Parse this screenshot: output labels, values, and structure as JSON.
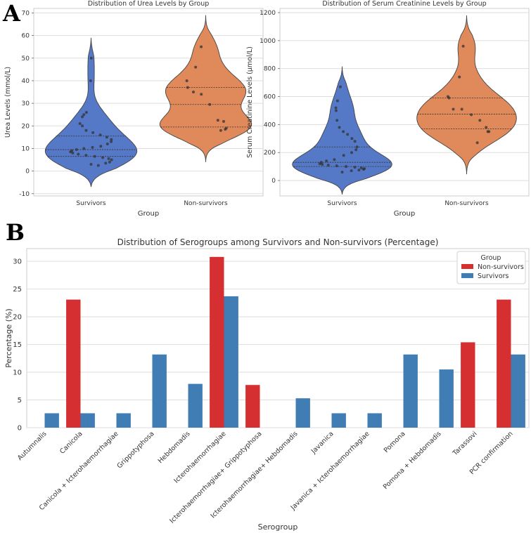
{
  "panels": {
    "a": "A",
    "b": "B"
  },
  "chart_data": [
    {
      "type": "violin",
      "title": "Distribution of Urea Levels by Group",
      "xlabel": "Group",
      "ylabel": "Urea Levels (mmol/L)",
      "categories": [
        "Survivors",
        "Non-survivors"
      ],
      "ylim": [
        -11,
        72
      ],
      "yticks": [
        -10,
        0,
        10,
        20,
        30,
        40,
        50,
        60,
        70
      ],
      "colors": [
        "#5579c6",
        "#e0895a"
      ],
      "groups": [
        {
          "name": "Survivors",
          "range": [
            -7,
            59
          ],
          "quartiles": [
            6.5,
            9.5,
            15.5
          ],
          "points": [
            3,
            2.5,
            3.5,
            4,
            5,
            5.5,
            6,
            6.5,
            7,
            7.5,
            8,
            8.5,
            9,
            9.5,
            10,
            10.5,
            11,
            12,
            13,
            14,
            15,
            16,
            17,
            18,
            20,
            21,
            24,
            25,
            26,
            40,
            50
          ]
        },
        {
          "name": "Non-survivors",
          "range": [
            4,
            69
          ],
          "quartiles": [
            19.5,
            29.5,
            37
          ],
          "points": [
            18,
            18.5,
            19,
            22,
            22.5,
            29.5,
            34,
            35,
            37,
            40,
            46,
            55
          ]
        }
      ]
    },
    {
      "type": "violin",
      "title": "Distribution of Serum Creatinine Levels by Group",
      "xlabel": "Group",
      "ylabel": "Serum Creatinine Levels (μmol/L)",
      "categories": [
        "Survivors",
        "Non-survivors"
      ],
      "ylim": [
        -110,
        1230
      ],
      "yticks": [
        0,
        200,
        400,
        600,
        800,
        1000,
        1200
      ],
      "colors": [
        "#5579c6",
        "#e0895a"
      ],
      "groups": [
        {
          "name": "Survivors",
          "range": [
            -100,
            815
          ],
          "quartiles": [
            100,
            130,
            240
          ],
          "points": [
            60,
            70,
            75,
            80,
            85,
            90,
            95,
            100,
            105,
            110,
            115,
            120,
            130,
            140,
            150,
            180,
            200,
            220,
            240,
            280,
            300,
            330,
            350,
            380,
            430,
            500,
            520,
            570,
            670
          ]
        },
        {
          "name": "Non-survivors",
          "range": [
            45,
            1180
          ],
          "quartiles": [
            370,
            475,
            590
          ],
          "points": [
            270,
            350,
            350,
            380,
            430,
            470,
            510,
            510,
            590,
            600,
            740,
            960
          ]
        }
      ]
    },
    {
      "type": "bar",
      "title": "Distribution of Serogroups among Survivors and Non-survivors (Percentage)",
      "xlabel": "Serogroup",
      "ylabel": "Percentage (%)",
      "ylim": [
        0,
        32.3
      ],
      "yticks": [
        0,
        5,
        10,
        15,
        20,
        25,
        30
      ],
      "legend_title": "Group",
      "legend_position": "top-right",
      "categories": [
        "Autumnalis",
        "Canicola",
        "Canicola + Icterohaemorrhagiae",
        "Grippotyphosa",
        "Hebdomadis",
        "Icterohaemorrhagiae",
        "Icterohaemorrhagiae+ Grippotyphosa",
        "Icterohaemorrhagiae+ Hebdomadis",
        "Javanica",
        "Javanica + Icterohaemorrhagiae",
        "Pomona",
        "Pomona + Hebdomadis",
        "Tarassovi",
        "PCR confirmation"
      ],
      "series": [
        {
          "name": "Non-survivors",
          "color": "#d62f32",
          "values": [
            0,
            23.1,
            0,
            0,
            0,
            30.8,
            7.7,
            0,
            0,
            0,
            0,
            0,
            15.4,
            23.1
          ]
        },
        {
          "name": "Survivors",
          "color": "#3f7db4",
          "values": [
            2.6,
            2.6,
            2.6,
            13.2,
            7.9,
            23.7,
            0,
            5.3,
            2.6,
            2.6,
            13.2,
            10.5,
            0,
            13.2
          ]
        }
      ]
    }
  ]
}
